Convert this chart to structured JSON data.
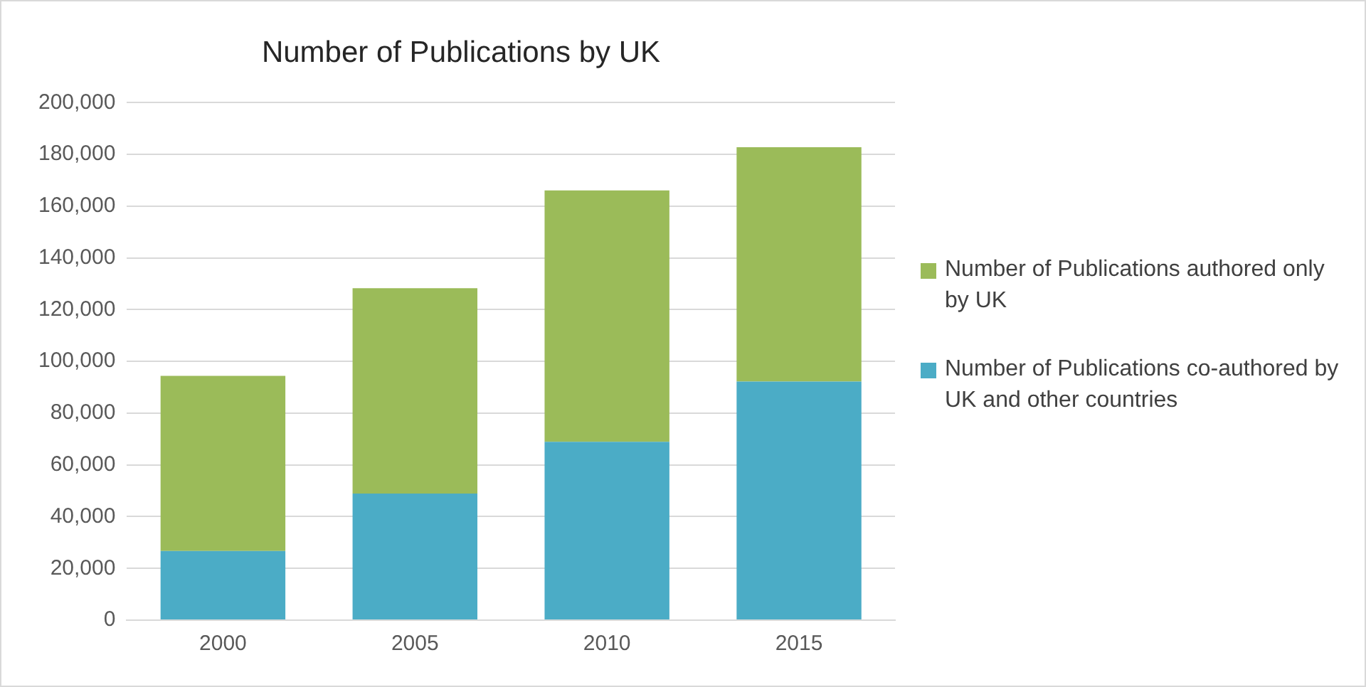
{
  "chart_data": {
    "type": "bar",
    "title": "Number of Publications by UK",
    "stacked": true,
    "categories": [
      "2000",
      "2005",
      "2010",
      "2015"
    ],
    "series": [
      {
        "name": "Number of Publications co-authored by UK and other countries",
        "color": "#4bacc6",
        "values": [
          26700,
          48900,
          68900,
          92200
        ]
      },
      {
        "name": "Number of Publications authored only by UK",
        "color": "#9bbb59",
        "values": [
          67700,
          79400,
          97200,
          90600
        ]
      }
    ],
    "ylim": [
      0,
      200000
    ],
    "yticks": [
      0,
      {
        "value": 20000,
        "label": "20,000"
      },
      {
        "value": 40000,
        "label": "40,000"
      },
      {
        "value": 60000,
        "label": "60,000"
      },
      {
        "value": 80000,
        "label": "80,000"
      },
      {
        "value": 100000,
        "label": "100,000"
      },
      {
        "value": 120000,
        "label": "120,000"
      },
      {
        "value": 140000,
        "label": "140,000"
      },
      {
        "value": 160000,
        "label": "160,000"
      },
      {
        "value": 180000,
        "label": "180,000"
      },
      {
        "value": 200000,
        "label": "200,000"
      }
    ],
    "grid": "y",
    "legend": "right"
  }
}
